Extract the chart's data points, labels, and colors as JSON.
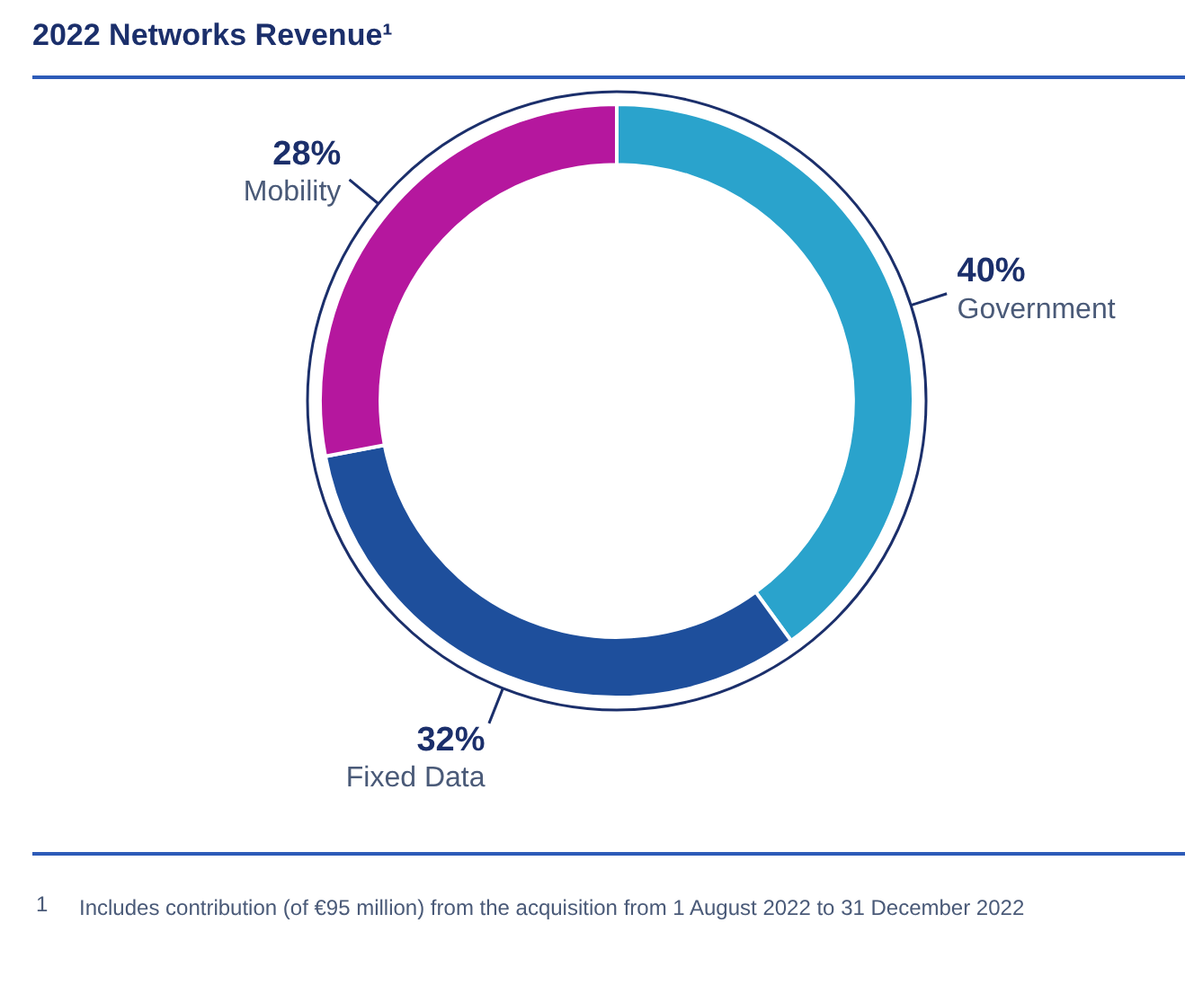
{
  "chart_data": {
    "type": "donut",
    "title": "2022 Networks Revenue¹",
    "categories": [
      "Government",
      "Fixed Data",
      "Mobility"
    ],
    "values": [
      40,
      32,
      28
    ],
    "colors": [
      "#2aa3cc",
      "#1e4f9c",
      "#b5179e"
    ],
    "value_labels": [
      "40%",
      "32%",
      "28%"
    ],
    "legend": false,
    "annotations": [
      "1",
      "Includes contribution (of €95 million) from the acquisition from 1 August 2022 to 31 December 2022"
    ]
  }
}
